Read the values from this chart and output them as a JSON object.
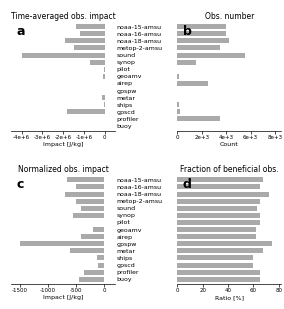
{
  "labels": [
    "buoy",
    "profiler",
    "gpscd",
    "ships",
    "metar",
    "gpspw",
    "airep",
    "geoamv",
    "pilot",
    "synop",
    "sound",
    "metop-2-amsu",
    "noaa-18-amsu",
    "noaa-16-amsu",
    "noaa-15-amsu"
  ],
  "impact_a": [
    0,
    0,
    -1800000.0,
    -50000.0,
    -150000.0,
    0,
    0,
    -100000.0,
    -50000.0,
    -700000.0,
    -4000000.0,
    -1500000.0,
    -1900000.0,
    -1200000.0,
    -1400000.0
  ],
  "count_b": [
    0,
    3500,
    200,
    100,
    0,
    0,
    2500,
    100,
    0,
    1500,
    5500,
    3500,
    4200,
    4000,
    4000
  ],
  "impact_c": [
    -450,
    -350,
    -100,
    -120,
    -600,
    -1500,
    -400,
    -200,
    0,
    -550,
    -400,
    -500,
    -700,
    -500,
    -650
  ],
  "ratio_d": [
    65,
    65,
    60,
    60,
    68,
    75,
    62,
    62,
    65,
    65,
    63,
    65,
    72,
    65,
    68
  ],
  "bar_color": "#aaaaaa",
  "title_a": "Time-averaged obs. impact",
  "title_b": "Obs. number",
  "title_c": "Normalized obs. impact",
  "title_d": "Fraction of beneficial obs.",
  "xlabel_a": "Impact [J/kg]",
  "xlabel_b": "Count",
  "xlabel_c": "Impact [J/kg]",
  "xlabel_d": "Ratio [%]",
  "xlim_a": [
    -4500000.0,
    500000.0
  ],
  "xlim_b": [
    0,
    8500
  ],
  "xlim_c": [
    -1650,
    200
  ],
  "xlim_d": [
    0,
    82
  ],
  "xticks_a": [
    -4000000.0,
    -3000000.0,
    -2000000.0,
    -1000000.0,
    0
  ],
  "xticklabels_a": [
    "-4e+6",
    "-3e+6",
    "-2e+6",
    "-1e+6",
    "0"
  ],
  "xticks_b": [
    0,
    2000,
    4000,
    6000,
    8000
  ],
  "xticklabels_b": [
    "0",
    "2e+3",
    "4e+3",
    "6e+3",
    "8e+3"
  ],
  "xticks_c": [
    -1500,
    -1000,
    -500,
    0
  ],
  "xticklabels_c": [
    "-1500",
    "-1000",
    "-500",
    "0"
  ],
  "xticks_d": [
    0,
    20,
    40,
    60,
    80
  ],
  "xticklabels_d": [
    "0",
    "20",
    "40",
    "60",
    "80"
  ],
  "panel_labels": [
    "a",
    "b",
    "c",
    "d"
  ],
  "label_fontsize": 4.5,
  "title_fontsize": 5.5,
  "tick_fontsize": 4.0,
  "panel_label_fontsize": 9,
  "ylabel_fontsize": 4.5
}
